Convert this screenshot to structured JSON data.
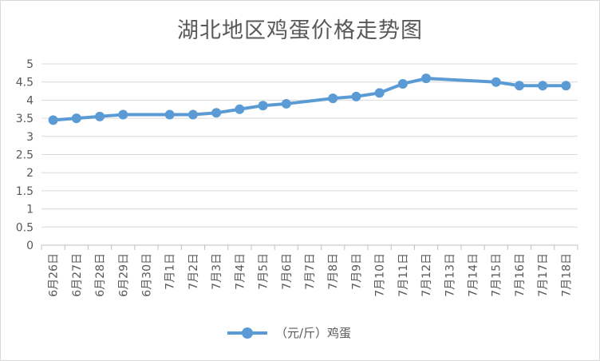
{
  "chart_data": {
    "type": "line",
    "title": "湖北地区鸡蛋价格走势图",
    "categories": [
      "6月26日",
      "6月27日",
      "6月28日",
      "6月29日",
      "6月30日",
      "7月1日",
      "7月2日",
      "7月3日",
      "7月4日",
      "7月5日",
      "7月6日",
      "7月7日",
      "7月8日",
      "7月9日",
      "7月10日",
      "7月11日",
      "7月12日",
      "7月13日",
      "7月14日",
      "7月15日",
      "7月16日",
      "7月17日",
      "7月18日"
    ],
    "series": [
      {
        "name": "（元/斤）鸡蛋",
        "values": [
          3.45,
          3.5,
          3.55,
          3.6,
          null,
          3.6,
          3.6,
          3.65,
          3.75,
          3.85,
          3.9,
          null,
          4.05,
          4.1,
          4.2,
          4.45,
          4.6,
          null,
          null,
          4.5,
          4.4,
          4.4,
          4.4
        ],
        "color": "#5b9bd5"
      }
    ],
    "ylim": [
      0,
      5
    ],
    "yticks": [
      "0",
      "0.5",
      "1",
      "1.5",
      "2",
      "2.5",
      "3",
      "3.5",
      "4",
      "4.5",
      "5"
    ],
    "grid": true,
    "legend_position": "bottom"
  }
}
